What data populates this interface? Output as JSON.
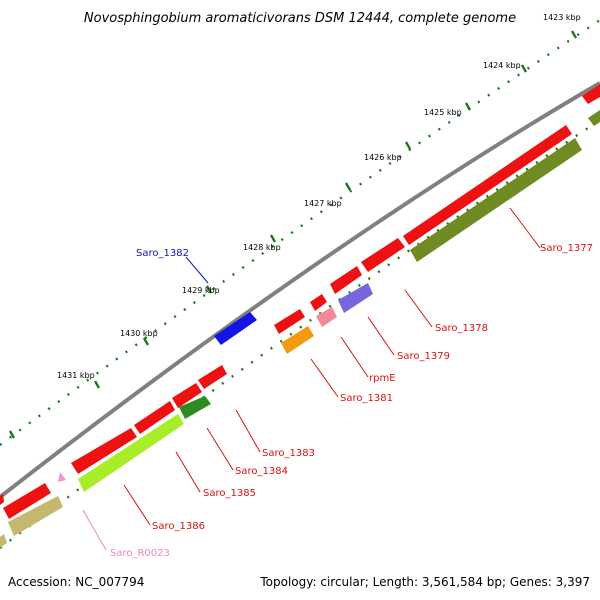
{
  "title": "Novosphingobium aromaticivorans DSM 12444, complete genome",
  "footer": {
    "accession": "Accession: NC_007794",
    "summary": "Topology: circular; Length: 3,561,584 bp; Genes: 3,397"
  },
  "colors": {
    "backbone": "#808080",
    "tick": "#1c7a1c",
    "cds_red": "#ee1111",
    "cds_olive": "#6f8b22",
    "cds_lime": "#a8ee28",
    "cds_green": "#2e8b22",
    "cds_orange": "#f59a0f",
    "cds_pink": "#f08a9a",
    "cds_purple": "#7766dd",
    "cds_blue": "#1414e6",
    "cds_khaki": "#c4b870",
    "rna_pink": "#ee99cc"
  },
  "kbp_labels": [
    "1423 kbp",
    "1424 kbp",
    "1425 kbp",
    "1426 kbp",
    "1427 kbp",
    "1428 kbp",
    "1429 kbp",
    "1430 kbp",
    "1431 kbp"
  ],
  "gene_labels": [
    {
      "text": "Saro_1377",
      "color": "#dd1111"
    },
    {
      "text": "Saro_1378",
      "color": "#dd1111"
    },
    {
      "text": "Saro_1379",
      "color": "#dd1111"
    },
    {
      "text": "rpmE",
      "color": "#dd1111"
    },
    {
      "text": "Saro_1381",
      "color": "#dd1111"
    },
    {
      "text": "Saro_1382",
      "color": "#1111cc"
    },
    {
      "text": "Saro_1383",
      "color": "#dd1111"
    },
    {
      "text": "Saro_1384",
      "color": "#dd1111"
    },
    {
      "text": "Saro_1385",
      "color": "#dd1111"
    },
    {
      "text": "Saro_1386",
      "color": "#dd1111"
    },
    {
      "text": "Saro_R0023",
      "color": "#ee88bb"
    }
  ]
}
